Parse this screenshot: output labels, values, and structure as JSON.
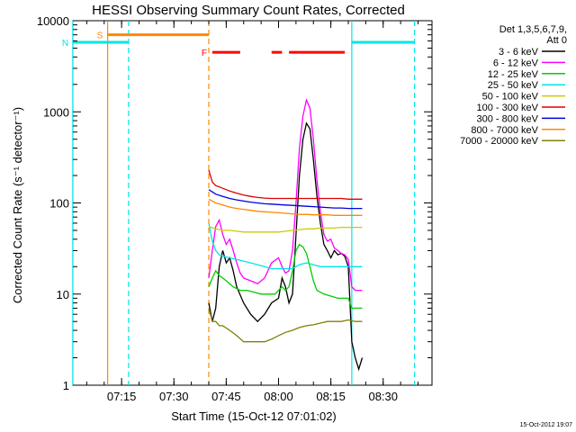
{
  "chart_data": {
    "type": "line",
    "title": "HESSI Observing Summary Count Rates, Corrected",
    "xlabel": "Start Time (15-Oct-12 07:01:02)",
    "ylabel": "Corrected Count Rate (s⁻¹ detector⁻¹)",
    "y_scale": "log",
    "ylim": [
      1,
      10000
    ],
    "xlim": [
      "07:01:02",
      "08:44:00"
    ],
    "x_ticks": [
      "07:15",
      "07:30",
      "07:45",
      "08:00",
      "08:15",
      "08:30"
    ],
    "y_ticks": [
      "1",
      "10",
      "100",
      "1000",
      "10000"
    ],
    "legend_header": [
      "Det 1,3,5,6,7,9,",
      "Att 0"
    ],
    "legend_placement": "right",
    "timestamp": "15-Oct-2012 19:07",
    "data_start": "07:40",
    "data_end": "08:24",
    "series": [
      {
        "name": "3 - 6 keV",
        "color": "#000000",
        "points": [
          [
            "07:40",
            8
          ],
          [
            "07:41",
            5
          ],
          [
            "07:42",
            7
          ],
          [
            "07:43",
            20
          ],
          [
            "07:44",
            30
          ],
          [
            "07:45",
            22
          ],
          [
            "07:46",
            25
          ],
          [
            "07:47",
            18
          ],
          [
            "07:48",
            12
          ],
          [
            "07:50",
            8
          ],
          [
            "07:52",
            6
          ],
          [
            "07:54",
            5
          ],
          [
            "07:56",
            6
          ],
          [
            "07:58",
            8
          ],
          [
            "08:00",
            9
          ],
          [
            "08:01",
            15
          ],
          [
            "08:02",
            12
          ],
          [
            "08:03",
            8
          ],
          [
            "08:04",
            10
          ],
          [
            "08:05",
            45
          ],
          [
            "08:06",
            200
          ],
          [
            "08:07",
            500
          ],
          [
            "08:08",
            750
          ],
          [
            "08:09",
            650
          ],
          [
            "08:10",
            300
          ],
          [
            "08:11",
            120
          ],
          [
            "08:12",
            60
          ],
          [
            "08:13",
            35
          ],
          [
            "08:14",
            30
          ],
          [
            "08:15",
            25
          ],
          [
            "08:16",
            30
          ],
          [
            "08:17",
            27
          ],
          [
            "08:18",
            28
          ],
          [
            "08:19",
            26
          ],
          [
            "08:20",
            20
          ],
          [
            "08:21",
            3
          ],
          [
            "08:22",
            2
          ],
          [
            "08:23",
            1.5
          ],
          [
            "08:24",
            2
          ]
        ]
      },
      {
        "name": "6 - 12 keV",
        "color": "#ff00ff",
        "points": [
          [
            "07:40",
            15
          ],
          [
            "07:41",
            30
          ],
          [
            "07:42",
            55
          ],
          [
            "07:43",
            65
          ],
          [
            "07:44",
            45
          ],
          [
            "07:45",
            35
          ],
          [
            "07:46",
            40
          ],
          [
            "07:47",
            30
          ],
          [
            "07:48",
            22
          ],
          [
            "07:49",
            17
          ],
          [
            "07:50",
            15
          ],
          [
            "07:52",
            14
          ],
          [
            "07:54",
            13
          ],
          [
            "07:56",
            15
          ],
          [
            "07:58",
            22
          ],
          [
            "08:00",
            25
          ],
          [
            "08:01",
            20
          ],
          [
            "08:02",
            17
          ],
          [
            "08:03",
            18
          ],
          [
            "08:04",
            30
          ],
          [
            "08:05",
            100
          ],
          [
            "08:06",
            400
          ],
          [
            "08:07",
            900
          ],
          [
            "08:08",
            1350
          ],
          [
            "08:09",
            1100
          ],
          [
            "08:10",
            500
          ],
          [
            "08:11",
            180
          ],
          [
            "08:12",
            80
          ],
          [
            "08:13",
            45
          ],
          [
            "08:14",
            38
          ],
          [
            "08:15",
            40
          ],
          [
            "08:16",
            32
          ],
          [
            "08:17",
            30
          ],
          [
            "08:18",
            28
          ],
          [
            "08:19",
            27
          ],
          [
            "08:20",
            24
          ],
          [
            "08:21",
            12
          ],
          [
            "08:22",
            11
          ],
          [
            "08:23",
            11
          ],
          [
            "08:24",
            11
          ]
        ]
      },
      {
        "name": "12 - 25 keV",
        "color": "#00cc00",
        "points": [
          [
            "07:40",
            12
          ],
          [
            "07:41",
            15
          ],
          [
            "07:42",
            18
          ],
          [
            "07:43",
            16
          ],
          [
            "07:44",
            15
          ],
          [
            "07:45",
            14
          ],
          [
            "07:47",
            12
          ],
          [
            "07:49",
            11
          ],
          [
            "07:51",
            11
          ],
          [
            "07:53",
            10.5
          ],
          [
            "07:55",
            10
          ],
          [
            "07:57",
            10
          ],
          [
            "07:59",
            10
          ],
          [
            "08:00",
            11
          ],
          [
            "08:01",
            12
          ],
          [
            "08:02",
            11
          ],
          [
            "08:03",
            12
          ],
          [
            "08:04",
            18
          ],
          [
            "08:05",
            30
          ],
          [
            "08:06",
            35
          ],
          [
            "08:07",
            33
          ],
          [
            "08:08",
            28
          ],
          [
            "08:09",
            20
          ],
          [
            "08:10",
            14
          ],
          [
            "08:11",
            11
          ],
          [
            "08:13",
            10
          ],
          [
            "08:15",
            9.5
          ],
          [
            "08:17",
            9
          ],
          [
            "08:19",
            9
          ],
          [
            "08:20",
            9
          ],
          [
            "08:21",
            7
          ],
          [
            "08:22",
            7
          ],
          [
            "08:23",
            7
          ],
          [
            "08:24",
            7
          ]
        ]
      },
      {
        "name": "25 - 50 keV",
        "color": "#00e5e5",
        "points": [
          [
            "07:40",
            60
          ],
          [
            "07:41",
            38
          ],
          [
            "07:42",
            30
          ],
          [
            "07:43",
            27
          ],
          [
            "07:44",
            26
          ],
          [
            "07:46",
            25
          ],
          [
            "07:48",
            24
          ],
          [
            "07:50",
            23
          ],
          [
            "07:52",
            22
          ],
          [
            "07:54",
            21
          ],
          [
            "07:56",
            20
          ],
          [
            "07:58",
            19
          ],
          [
            "08:00",
            19
          ],
          [
            "08:02",
            19
          ],
          [
            "08:04",
            19
          ],
          [
            "08:06",
            21
          ],
          [
            "08:08",
            22
          ],
          [
            "08:10",
            21
          ],
          [
            "08:12",
            20
          ],
          [
            "08:14",
            20
          ],
          [
            "08:16",
            20
          ],
          [
            "08:18",
            20
          ],
          [
            "08:20",
            20
          ],
          [
            "08:22",
            20
          ],
          [
            "08:24",
            20
          ]
        ]
      },
      {
        "name": "50 - 100 keV",
        "color": "#cccc00",
        "points": [
          [
            "07:40",
            55
          ],
          [
            "07:42",
            52
          ],
          [
            "07:44",
            50
          ],
          [
            "07:46",
            50
          ],
          [
            "07:48",
            49
          ],
          [
            "07:50",
            48
          ],
          [
            "07:52",
            48
          ],
          [
            "07:54",
            48
          ],
          [
            "07:56",
            48
          ],
          [
            "07:58",
            48
          ],
          [
            "08:00",
            48
          ],
          [
            "08:02",
            49
          ],
          [
            "08:04",
            50
          ],
          [
            "08:06",
            51
          ],
          [
            "08:08",
            52
          ],
          [
            "08:10",
            52
          ],
          [
            "08:12",
            53
          ],
          [
            "08:14",
            53
          ],
          [
            "08:16",
            53
          ],
          [
            "08:18",
            54
          ],
          [
            "08:20",
            54
          ],
          [
            "08:22",
            54
          ],
          [
            "08:24",
            54
          ]
        ]
      },
      {
        "name": "100 - 300 keV",
        "color": "#dd0000",
        "points": [
          [
            "07:40",
            230
          ],
          [
            "07:41",
            170
          ],
          [
            "07:42",
            155
          ],
          [
            "07:44",
            145
          ],
          [
            "07:46",
            135
          ],
          [
            "07:48",
            128
          ],
          [
            "07:50",
            122
          ],
          [
            "07:52",
            118
          ],
          [
            "07:54",
            115
          ],
          [
            "07:56",
            113
          ],
          [
            "07:58",
            112
          ],
          [
            "08:00",
            112
          ],
          [
            "08:02",
            112
          ],
          [
            "08:04",
            112
          ],
          [
            "08:06",
            112
          ],
          [
            "08:08",
            112
          ],
          [
            "08:10",
            112
          ],
          [
            "08:12",
            112
          ],
          [
            "08:14",
            112
          ],
          [
            "08:16",
            112
          ],
          [
            "08:18",
            112
          ],
          [
            "08:20",
            110
          ],
          [
            "08:22",
            110
          ],
          [
            "08:24",
            110
          ]
        ]
      },
      {
        "name": "300 - 800 keV",
        "color": "#0000dd",
        "points": [
          [
            "07:40",
            140
          ],
          [
            "07:42",
            125
          ],
          [
            "07:44",
            118
          ],
          [
            "07:46",
            112
          ],
          [
            "07:48",
            108
          ],
          [
            "07:50",
            105
          ],
          [
            "07:52",
            102
          ],
          [
            "07:54",
            100
          ],
          [
            "07:56",
            98
          ],
          [
            "07:58",
            97
          ],
          [
            "08:00",
            96
          ],
          [
            "08:02",
            95
          ],
          [
            "08:04",
            94
          ],
          [
            "08:06",
            93
          ],
          [
            "08:08",
            92
          ],
          [
            "08:10",
            91
          ],
          [
            "08:12",
            90
          ],
          [
            "08:14",
            89
          ],
          [
            "08:16",
            88
          ],
          [
            "08:18",
            88
          ],
          [
            "08:20",
            87
          ],
          [
            "08:22",
            87
          ],
          [
            "08:24",
            87
          ]
        ]
      },
      {
        "name": "800 - 7000 keV",
        "color": "#ff8800",
        "points": [
          [
            "07:40",
            110
          ],
          [
            "07:42",
            100
          ],
          [
            "07:44",
            95
          ],
          [
            "07:46",
            90
          ],
          [
            "07:48",
            87
          ],
          [
            "07:50",
            85
          ],
          [
            "07:52",
            83
          ],
          [
            "07:54",
            81
          ],
          [
            "07:56",
            80
          ],
          [
            "07:58",
            79
          ],
          [
            "08:00",
            78
          ],
          [
            "08:02",
            77
          ],
          [
            "08:04",
            76
          ],
          [
            "08:06",
            75
          ],
          [
            "08:08",
            75
          ],
          [
            "08:10",
            74
          ],
          [
            "08:12",
            74
          ],
          [
            "08:14",
            74
          ],
          [
            "08:16",
            73
          ],
          [
            "08:18",
            73
          ],
          [
            "08:20",
            73
          ],
          [
            "08:22",
            73
          ],
          [
            "08:24",
            73
          ]
        ]
      },
      {
        "name": "7000 - 20000 keV",
        "color": "#808000",
        "points": [
          [
            "07:40",
            7
          ],
          [
            "07:41",
            5
          ],
          [
            "07:42",
            5
          ],
          [
            "07:43",
            4.5
          ],
          [
            "07:44",
            4.5
          ],
          [
            "07:46",
            4
          ],
          [
            "07:48",
            3.5
          ],
          [
            "07:50",
            3
          ],
          [
            "07:52",
            3
          ],
          [
            "07:54",
            3
          ],
          [
            "07:56",
            3
          ],
          [
            "07:58",
            3.2
          ],
          [
            "08:00",
            3.5
          ],
          [
            "08:02",
            3.8
          ],
          [
            "08:04",
            4
          ],
          [
            "08:06",
            4.3
          ],
          [
            "08:08",
            4.5
          ],
          [
            "08:10",
            4.6
          ],
          [
            "08:12",
            4.8
          ],
          [
            "08:14",
            5
          ],
          [
            "08:16",
            5
          ],
          [
            "08:18",
            5
          ],
          [
            "08:20",
            5.2
          ],
          [
            "08:22",
            5
          ],
          [
            "08:24",
            5
          ]
        ]
      }
    ],
    "flags": [
      {
        "label": "S",
        "color": "#ff8800",
        "spans": [
          [
            "07:11",
            "07:40"
          ]
        ],
        "level": 7000
      },
      {
        "label": "N",
        "color": "#00e5e5",
        "spans": [
          [
            "07:01",
            "07:17"
          ],
          [
            "08:21",
            "08:39"
          ]
        ],
        "level": 5800
      },
      {
        "label": "F",
        "color": "#ff0000",
        "spans": [
          [
            "07:41",
            "07:49"
          ],
          [
            "07:58",
            "08:01"
          ],
          [
            "08:03",
            "08:19"
          ]
        ],
        "level": 4500
      }
    ],
    "vlines": [
      {
        "time": "07:01",
        "color": "#00e5e5",
        "dashed": false
      },
      {
        "time": "07:11",
        "color": "#ff8800",
        "dashed": false
      },
      {
        "time": "07:17",
        "color": "#00e5e5",
        "dashed": true
      },
      {
        "time": "07:40",
        "color": "#ff8800",
        "dashed": true
      },
      {
        "time": "08:21",
        "color": "#00e5e5",
        "dashed": false
      },
      {
        "time": "08:39",
        "color": "#00e5e5",
        "dashed": true
      }
    ]
  }
}
